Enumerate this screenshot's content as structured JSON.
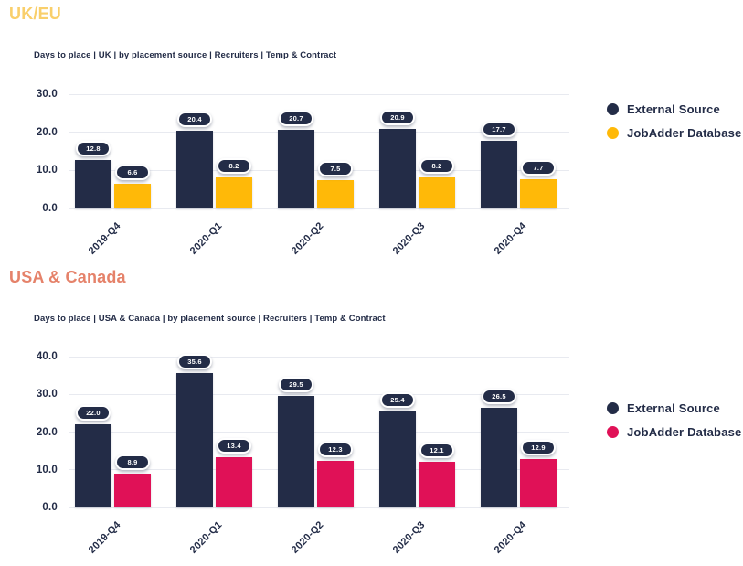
{
  "page": {
    "background": "#ffffff"
  },
  "colors": {
    "pill_bg": "#232C47",
    "pill_text": "#ffffff",
    "grid": "#E8EAF0",
    "axis_text": "#232C47"
  },
  "charts": [
    {
      "heading": "UK/EU",
      "heading_color": "#F9CF6B",
      "subtitle": "Days to place | UK | by placement source | Recruiters | Temp & Contract",
      "chart_data": {
        "type": "bar",
        "categories": [
          "2019-Q4",
          "2020-Q1",
          "2020-Q2",
          "2020-Q3",
          "2020-Q4"
        ],
        "series": [
          {
            "name": "External Source",
            "color": "#232C47",
            "values": [
              12.8,
              20.4,
              20.7,
              20.9,
              17.7
            ]
          },
          {
            "name": "JobAdder Database",
            "color": "#FFB908",
            "values": [
              6.6,
              8.2,
              7.5,
              8.2,
              7.7
            ]
          }
        ],
        "title": "Days to place | UK | by placement source | Recruiters | Temp & Contract",
        "xlabel": "",
        "ylabel": "",
        "ylim": [
          0,
          30
        ],
        "ytick_step": 10,
        "ytick_labels": [
          "0.0",
          "10.0",
          "20.0",
          "30.0"
        ],
        "grid": true,
        "legend_position": "right",
        "value_labels": true
      }
    },
    {
      "heading": "USA & Canada",
      "heading_color": "#E5826A",
      "subtitle": "Days to place | USA & Canada | by placement source | Recruiters | Temp & Contract",
      "chart_data": {
        "type": "bar",
        "categories": [
          "2019-Q4",
          "2020-Q1",
          "2020-Q2",
          "2020-Q3",
          "2020-Q4"
        ],
        "series": [
          {
            "name": "External Source",
            "color": "#232C47",
            "values": [
              22.0,
              35.6,
              29.5,
              25.4,
              26.5
            ]
          },
          {
            "name": "JobAdder Database",
            "color": "#E01157",
            "values": [
              8.9,
              13.4,
              12.3,
              12.1,
              12.9
            ]
          }
        ],
        "title": "Days to place | USA & Canada | by placement source | Recruiters | Temp & Contract",
        "xlabel": "",
        "ylabel": "",
        "ylim": [
          0,
          40
        ],
        "ytick_step": 10,
        "ytick_labels": [
          "0.0",
          "10.0",
          "20.0",
          "30.0",
          "40.0"
        ],
        "grid": true,
        "legend_position": "right",
        "value_labels": true
      }
    }
  ]
}
